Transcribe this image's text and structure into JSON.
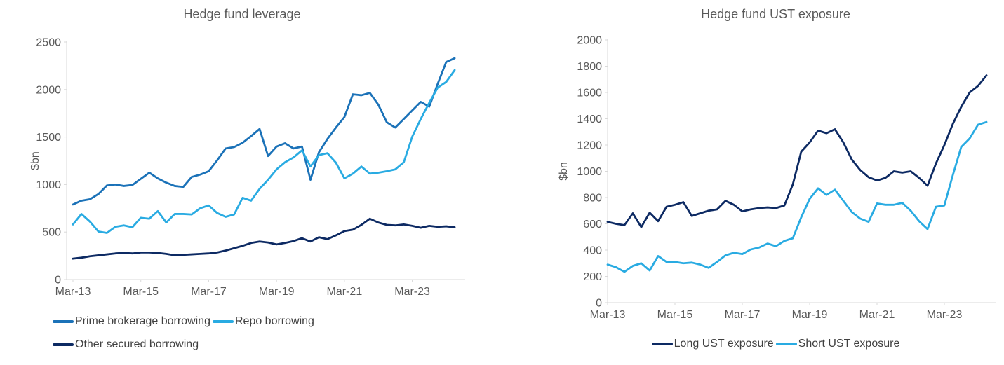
{
  "page": {
    "background": "#ffffff"
  },
  "colors": {
    "axis_line": "#d9d9d9",
    "tick_text": "#595959",
    "title_text": "#595959",
    "legend_text": "#404040",
    "prime_blue": "#1b72b8",
    "light_blue": "#29abe2",
    "dark_navy": "#0d2a63"
  },
  "chart_data": [
    {
      "type": "line",
      "title": "Hedge fund leverage",
      "ylabel": "$bn",
      "ylim": [
        0,
        2500
      ],
      "ytick_interval": 500,
      "yticks": [
        0,
        500,
        1000,
        1500,
        2000,
        2500
      ],
      "xtick_labels": [
        "Mar-13",
        "Mar-15",
        "Mar-17",
        "Mar-19",
        "Mar-21",
        "Mar-23"
      ],
      "xtick_every": 8,
      "grid": false,
      "legend_position": "bottom-left",
      "categories": [
        "Mar-13",
        "Jun-13",
        "Sep-13",
        "Dec-13",
        "Mar-14",
        "Jun-14",
        "Sep-14",
        "Dec-14",
        "Mar-15",
        "Jun-15",
        "Sep-15",
        "Dec-15",
        "Mar-16",
        "Jun-16",
        "Sep-16",
        "Dec-16",
        "Mar-17",
        "Jun-17",
        "Sep-17",
        "Dec-17",
        "Mar-18",
        "Jun-18",
        "Sep-18",
        "Dec-18",
        "Mar-19",
        "Jun-19",
        "Sep-19",
        "Dec-19",
        "Mar-20",
        "Jun-20",
        "Sep-20",
        "Dec-20",
        "Mar-21",
        "Jun-21",
        "Sep-21",
        "Dec-21",
        "Mar-22",
        "Jun-22",
        "Sep-22",
        "Dec-22",
        "Mar-23",
        "Jun-23",
        "Sep-23",
        "Dec-23",
        "Mar-24",
        "Jun-24"
      ],
      "series": [
        {
          "name": "Prime brokerage borrowing",
          "color": "#1b72b8",
          "values": [
            790,
            830,
            845,
            900,
            990,
            1000,
            985,
            995,
            1060,
            1125,
            1065,
            1020,
            985,
            975,
            1080,
            1105,
            1140,
            1255,
            1380,
            1395,
            1440,
            1510,
            1585,
            1300,
            1400,
            1435,
            1380,
            1400,
            1050,
            1340,
            1480,
            1600,
            1710,
            1950,
            1940,
            1965,
            1840,
            1655,
            1600,
            1690,
            1780,
            1870,
            1820,
            2060,
            2290,
            2330
          ]
        },
        {
          "name": "Repo borrowing",
          "color": "#29abe2",
          "values": [
            580,
            690,
            610,
            505,
            490,
            555,
            570,
            550,
            650,
            640,
            720,
            600,
            690,
            690,
            685,
            750,
            780,
            700,
            660,
            685,
            860,
            830,
            955,
            1050,
            1160,
            1235,
            1285,
            1360,
            1190,
            1310,
            1330,
            1230,
            1065,
            1115,
            1190,
            1115,
            1125,
            1140,
            1160,
            1235,
            1505,
            1690,
            1860,
            2020,
            2080,
            2205
          ]
        },
        {
          "name": "Other secured borrowing",
          "color": "#0d2a63",
          "values": [
            220,
            230,
            245,
            255,
            265,
            275,
            280,
            275,
            285,
            285,
            280,
            270,
            255,
            260,
            265,
            270,
            275,
            285,
            305,
            330,
            355,
            385,
            400,
            390,
            370,
            385,
            405,
            435,
            400,
            445,
            425,
            465,
            510,
            525,
            575,
            640,
            600,
            575,
            570,
            580,
            565,
            545,
            565,
            555,
            560,
            550
          ]
        }
      ]
    },
    {
      "type": "line",
      "title": "Hedge fund UST exposure",
      "ylabel": "$bn",
      "ylim": [
        0,
        2000
      ],
      "ytick_interval": 200,
      "yticks": [
        0,
        200,
        400,
        600,
        800,
        1000,
        1200,
        1400,
        1600,
        1800,
        2000
      ],
      "xtick_labels": [
        "Mar-13",
        "Mar-15",
        "Mar-17",
        "Mar-19",
        "Mar-21",
        "Mar-23"
      ],
      "xtick_every": 8,
      "grid": false,
      "legend_position": "bottom-center",
      "categories": [
        "Mar-13",
        "Jun-13",
        "Sep-13",
        "Dec-13",
        "Mar-14",
        "Jun-14",
        "Sep-14",
        "Dec-14",
        "Mar-15",
        "Jun-15",
        "Sep-15",
        "Dec-15",
        "Mar-16",
        "Jun-16",
        "Sep-16",
        "Dec-16",
        "Mar-17",
        "Jun-17",
        "Sep-17",
        "Dec-17",
        "Mar-18",
        "Jun-18",
        "Sep-18",
        "Dec-18",
        "Mar-19",
        "Jun-19",
        "Sep-19",
        "Dec-19",
        "Mar-20",
        "Jun-20",
        "Sep-20",
        "Dec-20",
        "Mar-21",
        "Jun-21",
        "Sep-21",
        "Dec-21",
        "Mar-22",
        "Jun-22",
        "Sep-22",
        "Dec-22",
        "Mar-23",
        "Jun-23",
        "Sep-23",
        "Dec-23",
        "Mar-24",
        "Jun-24"
      ],
      "series": [
        {
          "name": "Long UST exposure",
          "color": "#0d2a63",
          "values": [
            615,
            600,
            590,
            680,
            575,
            685,
            620,
            730,
            745,
            765,
            660,
            680,
            700,
            710,
            775,
            745,
            695,
            710,
            720,
            725,
            720,
            740,
            900,
            1150,
            1220,
            1310,
            1290,
            1320,
            1220,
            1090,
            1010,
            955,
            930,
            950,
            1000,
            990,
            1000,
            950,
            890,
            1060,
            1200,
            1360,
            1490,
            1600,
            1650,
            1730
          ]
        },
        {
          "name": "Short UST exposure",
          "color": "#29abe2",
          "values": [
            290,
            270,
            235,
            280,
            300,
            245,
            355,
            310,
            310,
            300,
            305,
            290,
            265,
            310,
            360,
            380,
            370,
            405,
            420,
            450,
            430,
            470,
            490,
            650,
            790,
            870,
            820,
            860,
            775,
            690,
            640,
            615,
            755,
            745,
            745,
            760,
            700,
            620,
            560,
            730,
            740,
            970,
            1185,
            1250,
            1355,
            1375
          ]
        }
      ]
    }
  ]
}
